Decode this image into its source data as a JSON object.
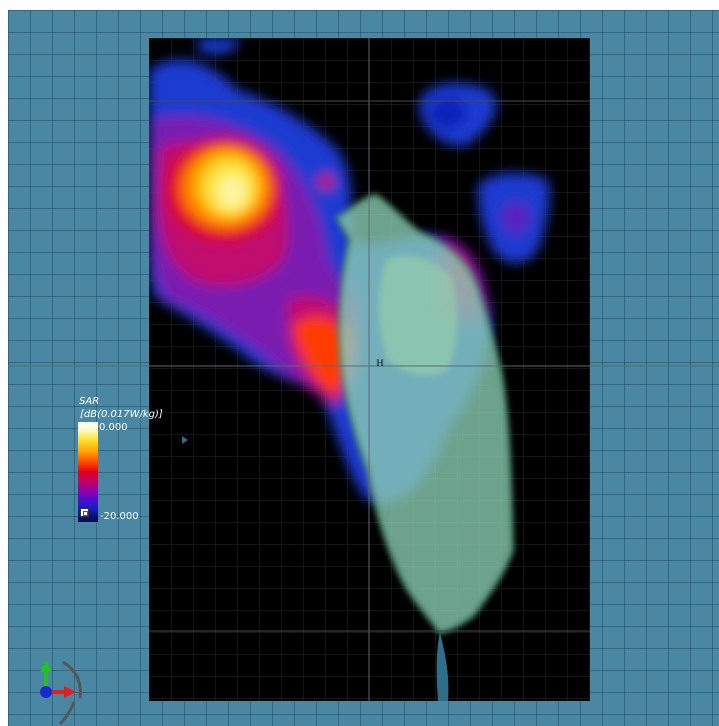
{
  "legend": {
    "quantity": "SAR",
    "unit": "[dB(0.017W/kg)]",
    "max_label": "0.000",
    "min_label": "-20.000"
  },
  "colors": {
    "background": "#4a87a3",
    "measurement_area": "#000000",
    "phantom": "#7fc2a0"
  },
  "icons": {
    "axes": "axes-triad-icon",
    "origin": "origin-marker-icon"
  }
}
